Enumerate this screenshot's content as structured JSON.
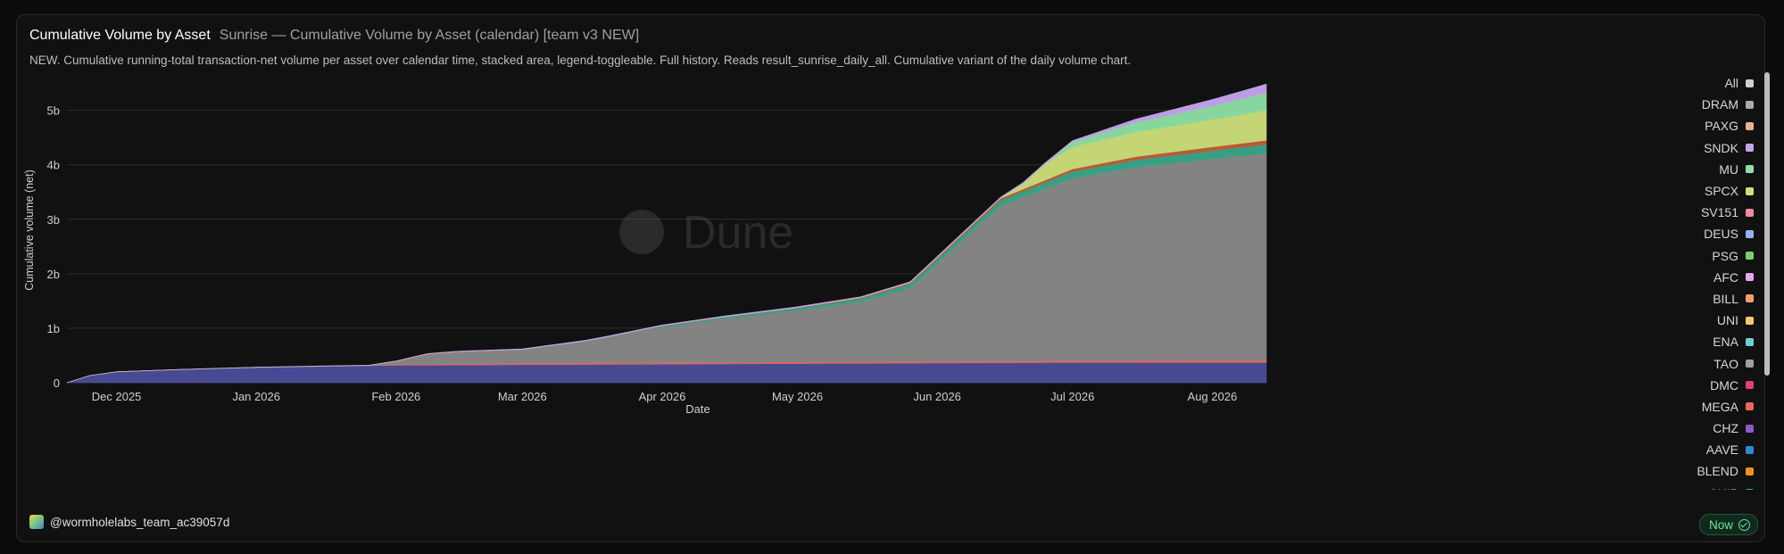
{
  "header": {
    "title": "Cumulative Volume by Asset",
    "subtitle": "Sunrise — Cumulative Volume by Asset (calendar) [team v3 NEW]",
    "description": "NEW. Cumulative running-total transaction-net volume per asset over calendar time, stacked area, legend-toggleable. Full history. Reads result_sunrise_daily_all. Cumulative variant of the daily volume chart."
  },
  "watermark": "Dune",
  "footer": {
    "user": "@wormholelabs_team_ac39057d",
    "status": "Now",
    "status_color": "#6fe3a2"
  },
  "colors": {
    "background": "#111111",
    "grid": "#2e2e2e",
    "axis_text": "#cfcfcf"
  },
  "chart_data": {
    "type": "area",
    "stacked": true,
    "xlabel": "Date",
    "ylabel": "Cumulative volume (net)",
    "x_range": [
      "2025-11-20",
      "2026-08-13"
    ],
    "ylim": [
      0,
      5.6
    ],
    "y_ticks": [
      0,
      1,
      2,
      3,
      4,
      5
    ],
    "y_tick_labels": [
      "0",
      "1b",
      "2b",
      "3b",
      "4b",
      "5b"
    ],
    "x_ticks": [
      "2025-12-01",
      "2026-01-01",
      "2026-02-01",
      "2026-03-01",
      "2026-04-01",
      "2026-05-01",
      "2026-06-01",
      "2026-07-01",
      "2026-08-01"
    ],
    "x_tick_labels": [
      "Dec 2025",
      "Jan 2026",
      "Feb 2026",
      "Mar 2026",
      "Apr 2026",
      "May 2026",
      "Jun 2026",
      "Jul 2026",
      "Aug 2026"
    ],
    "grid": true,
    "legend_position": "right",
    "legend": [
      {
        "name": "All",
        "color": "#cfcfcf"
      },
      {
        "name": "DRAM",
        "color": "#a9a9a9"
      },
      {
        "name": "PAXG",
        "color": "#e8b38a"
      },
      {
        "name": "SNDK",
        "color": "#c7a6ee"
      },
      {
        "name": "MU",
        "color": "#8fe0a6"
      },
      {
        "name": "SPCX",
        "color": "#cde07a"
      },
      {
        "name": "SV151",
        "color": "#f08aa0"
      },
      {
        "name": "DEUS",
        "color": "#8fb4f0"
      },
      {
        "name": "PSG",
        "color": "#7ccf6a"
      },
      {
        "name": "AFC",
        "color": "#e6a8f0"
      },
      {
        "name": "BILL",
        "color": "#f0a070"
      },
      {
        "name": "UNI",
        "color": "#f0c870"
      },
      {
        "name": "ENA",
        "color": "#6ad0d0"
      },
      {
        "name": "TAO",
        "color": "#a0a0a0"
      },
      {
        "name": "DMC",
        "color": "#e0407a"
      },
      {
        "name": "MEGA",
        "color": "#e86a5a"
      },
      {
        "name": "CHZ",
        "color": "#8a5ac8"
      },
      {
        "name": "AAVE",
        "color": "#2e8ad0"
      },
      {
        "name": "BLEND",
        "color": "#f0901e"
      },
      {
        "name": "CHIP",
        "color": "#3aa88a"
      }
    ],
    "series": [
      {
        "name": "AAVE",
        "color": "#4a4e9a",
        "x": [
          "2025-11-20",
          "2025-11-25",
          "2025-12-01",
          "2025-12-15",
          "2026-01-01",
          "2026-01-15",
          "2026-02-01",
          "2026-03-01",
          "2026-04-01",
          "2026-05-01",
          "2026-06-01",
          "2026-07-01",
          "2026-08-01",
          "2026-08-13"
        ],
        "values": [
          0,
          0.13,
          0.2,
          0.24,
          0.28,
          0.3,
          0.32,
          0.33,
          0.34,
          0.35,
          0.36,
          0.37,
          0.37,
          0.37
        ]
      },
      {
        "name": "MEGA",
        "color": "#e86a5a",
        "x": [
          "2025-11-20",
          "2026-01-26",
          "2026-02-01",
          "2026-04-01",
          "2026-06-01",
          "2026-08-13"
        ],
        "values": [
          0,
          0,
          0.02,
          0.03,
          0.03,
          0.04
        ]
      },
      {
        "name": "DRAM",
        "color": "#8a8a8a",
        "x": [
          "2025-11-20",
          "2026-01-26",
          "2026-02-01",
          "2026-02-08",
          "2026-02-15",
          "2026-03-01",
          "2026-03-15",
          "2026-04-01",
          "2026-04-15",
          "2026-05-01",
          "2026-05-15",
          "2026-05-26",
          "2026-06-01",
          "2026-06-15",
          "2026-07-01",
          "2026-07-15",
          "2026-08-01",
          "2026-08-13"
        ],
        "values": [
          0,
          0,
          0.05,
          0.18,
          0.22,
          0.25,
          0.4,
          0.65,
          0.8,
          0.95,
          1.1,
          1.35,
          1.8,
          2.85,
          3.35,
          3.55,
          3.7,
          3.8
        ]
      },
      {
        "name": "CHIP",
        "color": "#3aa88a",
        "x": [
          "2025-11-20",
          "2026-03-20",
          "2026-04-01",
          "2026-05-01",
          "2026-06-01",
          "2026-07-01",
          "2026-08-13"
        ],
        "values": [
          0,
          0,
          0.02,
          0.04,
          0.08,
          0.12,
          0.16
        ]
      },
      {
        "name": "BLEND",
        "color": "#c0603a",
        "x": [
          "2025-11-20",
          "2026-05-01",
          "2026-06-01",
          "2026-07-01",
          "2026-08-13"
        ],
        "values": [
          0,
          0.01,
          0.03,
          0.05,
          0.08
        ]
      },
      {
        "name": "SPCX",
        "color": "#cde07a",
        "x": [
          "2025-11-20",
          "2026-06-15",
          "2026-06-20",
          "2026-06-25",
          "2026-07-01",
          "2026-07-15",
          "2026-08-01",
          "2026-08-13"
        ],
        "values": [
          0,
          0,
          0.1,
          0.3,
          0.4,
          0.45,
          0.5,
          0.55
        ]
      },
      {
        "name": "MU",
        "color": "#8fe0a6",
        "x": [
          "2025-11-20",
          "2026-06-25",
          "2026-07-01",
          "2026-07-15",
          "2026-08-01",
          "2026-08-13"
        ],
        "values": [
          0,
          0,
          0.1,
          0.18,
          0.25,
          0.32
        ]
      },
      {
        "name": "SNDK",
        "color": "#c7a6ee",
        "x": [
          "2025-11-20",
          "2026-07-01",
          "2026-07-15",
          "2026-08-01",
          "2026-08-13"
        ],
        "values": [
          0,
          0.02,
          0.06,
          0.12,
          0.16
        ]
      }
    ]
  }
}
